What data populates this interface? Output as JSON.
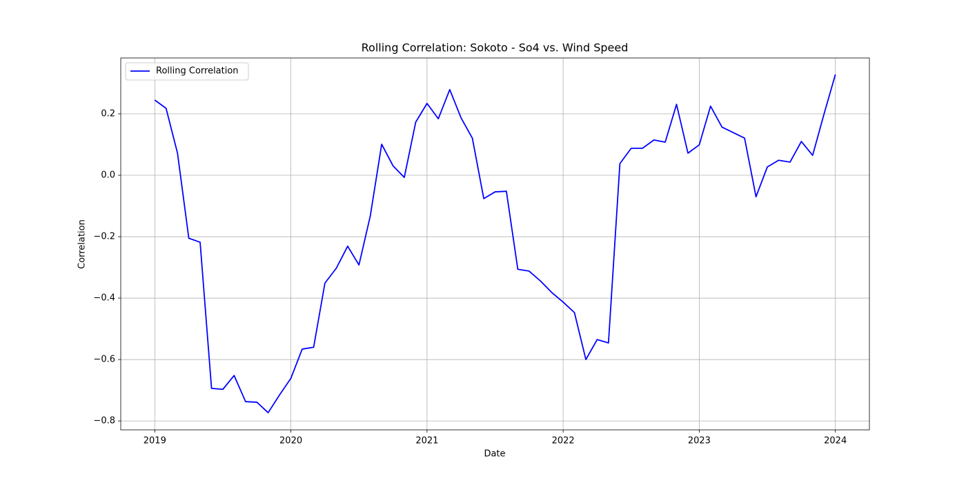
{
  "chart_data": {
    "type": "line",
    "title": "Rolling Correlation: Sokoto - So4 vs. Wind Speed",
    "x_label": "Date",
    "y_label": "Correlation",
    "x": [
      2019,
      2019.083,
      2019.167,
      2019.25,
      2019.333,
      2019.417,
      2019.5,
      2019.583,
      2019.667,
      2019.75,
      2019.833,
      2019.917,
      2020,
      2020.083,
      2020.167,
      2020.25,
      2020.333,
      2020.417,
      2020.5,
      2020.583,
      2020.667,
      2020.75,
      2020.833,
      2020.917,
      2021,
      2021.083,
      2021.167,
      2021.25,
      2021.333,
      2021.417,
      2021.5,
      2021.583,
      2021.667,
      2021.75,
      2021.833,
      2021.917,
      2022,
      2022.083,
      2022.167,
      2022.25,
      2022.333,
      2022.417,
      2022.5,
      2022.583,
      2022.667,
      2022.75,
      2022.833,
      2022.917,
      2023,
      2023.083,
      2023.167,
      2023.25,
      2023.333,
      2023.417,
      2023.5,
      2023.583,
      2023.667,
      2023.75,
      2023.833,
      2023.917,
      2024
    ],
    "series": [
      {
        "name": "Rolling Correlation",
        "color": "#0000ff",
        "values": [
          0.245,
          0.218,
          0.072,
          -0.205,
          -0.218,
          -0.694,
          -0.697,
          -0.652,
          -0.737,
          -0.739,
          -0.773,
          -0.715,
          -0.661,
          -0.566,
          -0.56,
          -0.351,
          -0.303,
          -0.231,
          -0.292,
          -0.133,
          0.101,
          0.031,
          -0.007,
          0.173,
          0.234,
          0.184,
          0.279,
          0.187,
          0.121,
          -0.076,
          -0.054,
          -0.052,
          -0.306,
          -0.312,
          -0.344,
          -0.382,
          -0.413,
          -0.447,
          -0.6,
          -0.535,
          -0.546,
          0.038,
          0.088,
          0.088,
          0.115,
          0.108,
          0.231,
          0.072,
          0.099,
          0.225,
          0.157,
          0.139,
          0.121,
          -0.07,
          0.027,
          0.049,
          0.043,
          0.11,
          0.065,
          0.2,
          0.328
        ]
      }
    ],
    "xlim": [
      2018.75,
      2024.25
    ],
    "xticks": [
      2019,
      2020,
      2021,
      2022,
      2023,
      2024
    ],
    "ylim": [
      -0.829,
      0.382
    ],
    "yticks": [
      {
        "value": -0.8,
        "label": "−0.8"
      },
      {
        "value": -0.6,
        "label": "−0.6"
      },
      {
        "value": -0.4,
        "label": "−0.4"
      },
      {
        "value": -0.2,
        "label": "−0.2"
      },
      {
        "value": 0,
        "label": "0.0"
      },
      0.2
    ],
    "grid": true,
    "legend": "upper left"
  }
}
